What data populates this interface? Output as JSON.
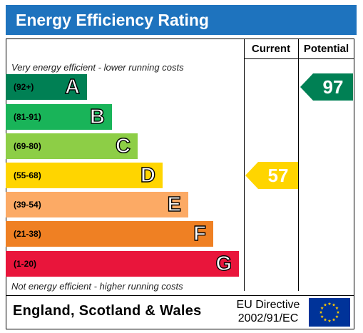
{
  "header": {
    "title": "Energy Efficiency Rating"
  },
  "columns": {
    "current_label": "Current",
    "potential_label": "Potential"
  },
  "notes": {
    "top": "Very energy efficient - lower running costs",
    "bottom": "Not energy efficient - higher running costs"
  },
  "footer": {
    "country": "England, Scotland & Wales",
    "directive_line1": "EU Directive",
    "directive_line2": "2002/91/EC"
  },
  "chart_data": {
    "type": "bar",
    "title": "Energy Efficiency Rating",
    "bands": [
      {
        "letter": "A",
        "range": "(92+)",
        "color": "#008054"
      },
      {
        "letter": "B",
        "range": "(81-91)",
        "color": "#19b459"
      },
      {
        "letter": "C",
        "range": "(69-80)",
        "color": "#8dce46"
      },
      {
        "letter": "D",
        "range": "(55-68)",
        "color": "#ffd500"
      },
      {
        "letter": "E",
        "range": "(39-54)",
        "color": "#fcaa65"
      },
      {
        "letter": "F",
        "range": "(21-38)",
        "color": "#ef8023"
      },
      {
        "letter": "G",
        "range": "(1-20)",
        "color": "#e9153b"
      }
    ],
    "current": {
      "value": 57,
      "band": "D",
      "color": "#ffd500"
    },
    "potential": {
      "value": 97,
      "band": "A",
      "color": "#008054"
    }
  },
  "eu_flag": {
    "background": "#003399",
    "star_color": "#ffcc00"
  }
}
